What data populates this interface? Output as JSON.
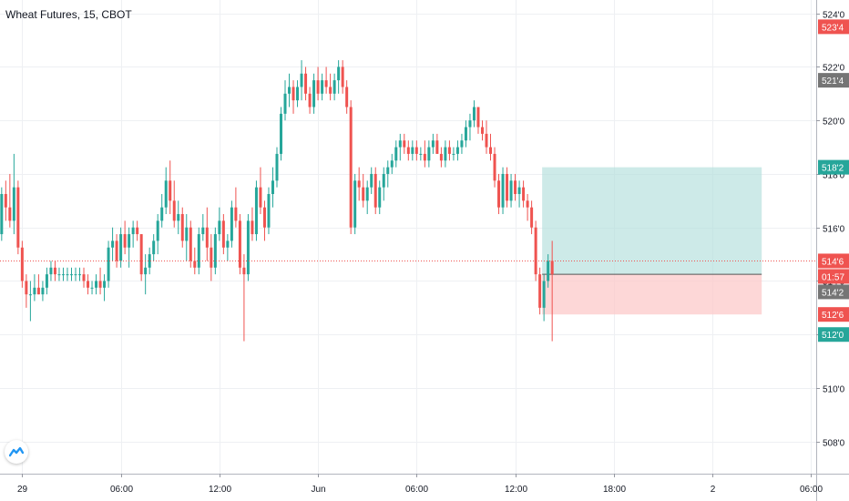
{
  "header": {
    "title": "Wheat Futures, 15, CBOT"
  },
  "colors": {
    "up": "#26a69a",
    "down": "#ef5350",
    "grid": "#eef0f3",
    "current_price_line": "#ef5350",
    "profit_zone": "#b2dfdb",
    "loss_zone": "#fcc9c9"
  },
  "logo": {
    "icon": "tradingview-logo-icon"
  },
  "chart_data": {
    "type": "candlestick",
    "title": "Wheat Futures, 15, CBOT",
    "xlabel": "",
    "ylabel": "",
    "y_unit": "cents per bushel (quarter-cent ticks, 521'4 = 521.5)",
    "ylim": [
      506.8,
      524.5
    ],
    "y_ticks": [
      "524'0",
      "522'0",
      "520'0",
      "518'0",
      "516'0",
      "514'0",
      "512'0",
      "510'0",
      "508'0"
    ],
    "y_tick_values": [
      524,
      522,
      520,
      518,
      516,
      514,
      512,
      510,
      508
    ],
    "x_ticks": [
      "29",
      "06:00",
      "12:00",
      "Jun",
      "06:00",
      "12:00",
      "18:00",
      "2",
      "06:00"
    ],
    "x_tick_slots": [
      7,
      31,
      55,
      79,
      103,
      127,
      151,
      175,
      199
    ],
    "grid": true,
    "price_labels": [
      {
        "text": "523'4",
        "value": 523.5,
        "color": "#ef5350"
      },
      {
        "text": "521'4",
        "value": 521.5,
        "color": "#757575"
      },
      {
        "text": "518'2",
        "value": 518.25,
        "color": "#26a69a"
      },
      {
        "text": "514'6",
        "value": 514.75,
        "color": "#ef5350"
      },
      {
        "text": "01:57",
        "value": 514.3,
        "color": "#ef5350",
        "countdown": true
      },
      {
        "text": "514'2",
        "value": 514.25,
        "color": "#757575"
      },
      {
        "text": "512'6",
        "value": 512.75,
        "color": "#ef5350"
      },
      {
        "text": "512'0",
        "value": 512.0,
        "color": "#26a69a"
      }
    ],
    "current_price": 514.75,
    "position": {
      "entry": 514.25,
      "target": 518.25,
      "stop": 512.75,
      "from_slot": 134,
      "to_slot": 187
    },
    "candles": [
      [
        515.5,
        516.5,
        515.25,
        516.25
      ],
      [
        516.25,
        517.25,
        515.5,
        515.75
      ],
      [
        515.75,
        517.5,
        515.5,
        517.25
      ],
      [
        517.25,
        517.75,
        516.25,
        516.75
      ],
      [
        516.75,
        518.0,
        516.0,
        516.25
      ],
      [
        516.25,
        518.75,
        515.75,
        517.5
      ],
      [
        517.5,
        517.75,
        515.0,
        515.25
      ],
      [
        515.25,
        515.5,
        513.75,
        514.0
      ],
      [
        514.0,
        514.25,
        513.0,
        513.5
      ],
      [
        513.5,
        514.0,
        512.5,
        513.5
      ],
      [
        513.5,
        514.25,
        513.25,
        513.75
      ],
      [
        513.75,
        514.25,
        513.5,
        513.5
      ],
      [
        513.5,
        514.0,
        513.25,
        513.75
      ],
      [
        513.75,
        514.5,
        513.5,
        514.25
      ],
      [
        514.25,
        514.75,
        514.0,
        514.5
      ],
      [
        514.5,
        514.75,
        514.0,
        514.25
      ],
      [
        514.25,
        514.5,
        514.0,
        514.25
      ],
      [
        514.25,
        514.5,
        514.0,
        514.25
      ],
      [
        514.25,
        514.5,
        514.0,
        514.25
      ],
      [
        514.25,
        514.5,
        514.0,
        514.25
      ],
      [
        514.25,
        514.5,
        514.0,
        514.25
      ],
      [
        514.25,
        514.5,
        514.0,
        514.25
      ],
      [
        514.25,
        514.5,
        513.75,
        514.0
      ],
      [
        514.0,
        514.25,
        513.5,
        513.75
      ],
      [
        513.75,
        514.0,
        513.5,
        513.75
      ],
      [
        513.75,
        514.25,
        513.5,
        514.0
      ],
      [
        514.0,
        514.5,
        513.5,
        513.75
      ],
      [
        513.75,
        514.25,
        513.25,
        514.0
      ],
      [
        514.0,
        515.5,
        513.75,
        515.25
      ],
      [
        515.25,
        516.0,
        514.75,
        515.5
      ],
      [
        515.5,
        515.75,
        514.5,
        514.75
      ],
      [
        514.75,
        516.0,
        514.5,
        515.75
      ],
      [
        515.75,
        516.25,
        515.0,
        515.25
      ],
      [
        515.25,
        516.0,
        514.5,
        515.75
      ],
      [
        515.75,
        516.25,
        515.25,
        516.0
      ],
      [
        516.0,
        516.25,
        515.5,
        515.75
      ],
      [
        515.75,
        515.75,
        514.0,
        514.25
      ],
      [
        514.25,
        515.0,
        513.5,
        514.5
      ],
      [
        514.5,
        515.25,
        514.25,
        515.0
      ],
      [
        515.0,
        515.75,
        514.75,
        515.5
      ],
      [
        515.5,
        516.5,
        515.0,
        516.25
      ],
      [
        516.25,
        517.25,
        516.0,
        516.75
      ],
      [
        516.75,
        518.25,
        516.5,
        517.75
      ],
      [
        517.75,
        518.5,
        516.5,
        517.0
      ],
      [
        517.0,
        517.75,
        516.0,
        516.25
      ],
      [
        516.25,
        517.0,
        515.75,
        516.5
      ],
      [
        516.5,
        516.75,
        515.25,
        515.5
      ],
      [
        515.5,
        516.5,
        514.75,
        516.0
      ],
      [
        516.0,
        516.25,
        514.5,
        514.75
      ],
      [
        514.75,
        515.25,
        514.25,
        514.5
      ],
      [
        514.5,
        516.0,
        514.25,
        515.75
      ],
      [
        515.75,
        516.5,
        515.5,
        516.0
      ],
      [
        516.0,
        516.75,
        514.75,
        515.25
      ],
      [
        515.25,
        515.75,
        514.0,
        514.5
      ],
      [
        514.5,
        516.0,
        514.25,
        515.75
      ],
      [
        515.75,
        516.75,
        515.5,
        516.25
      ],
      [
        516.25,
        516.5,
        515.0,
        515.25
      ],
      [
        515.25,
        515.75,
        514.75,
        515.5
      ],
      [
        515.5,
        517.0,
        515.25,
        516.75
      ],
      [
        516.75,
        517.5,
        516.0,
        516.25
      ],
      [
        516.25,
        516.5,
        514.25,
        514.5
      ],
      [
        514.5,
        515.0,
        511.75,
        514.25
      ],
      [
        514.25,
        516.5,
        514.0,
        516.25
      ],
      [
        516.25,
        516.75,
        515.5,
        515.75
      ],
      [
        515.75,
        517.75,
        515.5,
        517.5
      ],
      [
        517.5,
        518.25,
        516.5,
        516.75
      ],
      [
        516.75,
        517.0,
        515.5,
        516.0
      ],
      [
        516.0,
        517.5,
        515.75,
        517.25
      ],
      [
        517.25,
        518.25,
        516.75,
        517.75
      ],
      [
        517.75,
        519.0,
        517.5,
        518.75
      ],
      [
        518.75,
        520.5,
        518.5,
        520.25
      ],
      [
        520.25,
        521.5,
        520.0,
        521.0
      ],
      [
        521.0,
        521.75,
        520.5,
        521.25
      ],
      [
        521.25,
        521.5,
        520.25,
        520.75
      ],
      [
        520.75,
        521.5,
        520.5,
        521.25
      ],
      [
        521.25,
        522.25,
        520.75,
        521.75
      ],
      [
        521.75,
        522.0,
        520.75,
        521.0
      ],
      [
        521.0,
        521.25,
        520.25,
        520.5
      ],
      [
        520.5,
        521.75,
        520.25,
        521.5
      ],
      [
        521.5,
        522.0,
        520.75,
        521.0
      ],
      [
        521.0,
        521.75,
        520.75,
        521.5
      ],
      [
        521.5,
        522.0,
        521.0,
        521.25
      ],
      [
        521.25,
        521.75,
        520.75,
        521.0
      ],
      [
        521.0,
        521.75,
        520.75,
        521.5
      ],
      [
        521.5,
        522.25,
        521.0,
        522.0
      ],
      [
        522.0,
        522.25,
        521.0,
        521.25
      ],
      [
        521.25,
        521.5,
        520.25,
        520.5
      ],
      [
        520.5,
        520.75,
        515.75,
        516.0
      ],
      [
        516.0,
        518.0,
        515.75,
        517.75
      ],
      [
        517.75,
        518.25,
        517.0,
        517.5
      ],
      [
        517.5,
        518.0,
        516.75,
        517.0
      ],
      [
        517.0,
        517.75,
        516.5,
        517.5
      ],
      [
        517.5,
        518.25,
        517.25,
        518.0
      ],
      [
        518.0,
        518.25,
        516.5,
        516.75
      ],
      [
        516.75,
        517.75,
        516.5,
        517.5
      ],
      [
        517.5,
        518.25,
        517.0,
        518.0
      ],
      [
        518.0,
        518.5,
        517.5,
        518.25
      ],
      [
        518.25,
        518.75,
        518.0,
        518.5
      ],
      [
        518.5,
        519.25,
        518.25,
        519.0
      ],
      [
        519.0,
        519.5,
        518.5,
        519.25
      ],
      [
        519.25,
        519.5,
        518.75,
        519.0
      ],
      [
        519.0,
        519.25,
        518.5,
        518.75
      ],
      [
        518.75,
        519.25,
        518.5,
        519.0
      ],
      [
        519.0,
        519.25,
        518.5,
        518.75
      ],
      [
        518.75,
        519.0,
        518.5,
        518.75
      ],
      [
        518.75,
        519.25,
        518.25,
        518.5
      ],
      [
        518.5,
        519.25,
        518.25,
        519.0
      ],
      [
        519.0,
        519.5,
        518.75,
        519.25
      ],
      [
        519.25,
        519.5,
        518.75,
        518.75
      ],
      [
        518.75,
        519.0,
        518.25,
        518.5
      ],
      [
        518.5,
        519.25,
        518.25,
        519.0
      ],
      [
        519.0,
        519.25,
        518.5,
        518.75
      ],
      [
        518.75,
        519.0,
        518.5,
        518.75
      ],
      [
        518.75,
        519.25,
        518.5,
        519.0
      ],
      [
        519.0,
        519.5,
        518.75,
        519.25
      ],
      [
        519.25,
        520.0,
        519.0,
        519.75
      ],
      [
        519.75,
        520.25,
        519.25,
        520.0
      ],
      [
        520.0,
        520.75,
        519.75,
        520.5
      ],
      [
        520.5,
        520.5,
        519.5,
        519.75
      ],
      [
        519.75,
        520.0,
        519.25,
        519.5
      ],
      [
        519.5,
        520.0,
        518.75,
        519.0
      ],
      [
        519.0,
        519.5,
        518.5,
        518.75
      ],
      [
        518.75,
        519.0,
        517.5,
        517.75
      ],
      [
        517.75,
        518.0,
        516.5,
        516.75
      ],
      [
        516.75,
        518.25,
        516.5,
        518.0
      ],
      [
        518.0,
        518.25,
        516.75,
        517.0
      ],
      [
        517.0,
        518.0,
        516.75,
        517.75
      ],
      [
        517.75,
        518.0,
        517.0,
        517.25
      ],
      [
        517.25,
        517.75,
        516.75,
        517.5
      ],
      [
        517.5,
        517.75,
        516.75,
        517.0
      ],
      [
        517.0,
        517.25,
        516.25,
        516.75
      ],
      [
        516.75,
        517.0,
        515.75,
        516.0
      ],
      [
        516.0,
        516.25,
        514.0,
        514.25
      ],
      [
        514.25,
        514.5,
        512.75,
        513.0
      ],
      [
        513.0,
        514.25,
        512.5,
        514.0
      ],
      [
        514.0,
        515.0,
        513.75,
        514.75
      ],
      [
        514.75,
        515.5,
        511.75,
        514.25
      ]
    ]
  }
}
